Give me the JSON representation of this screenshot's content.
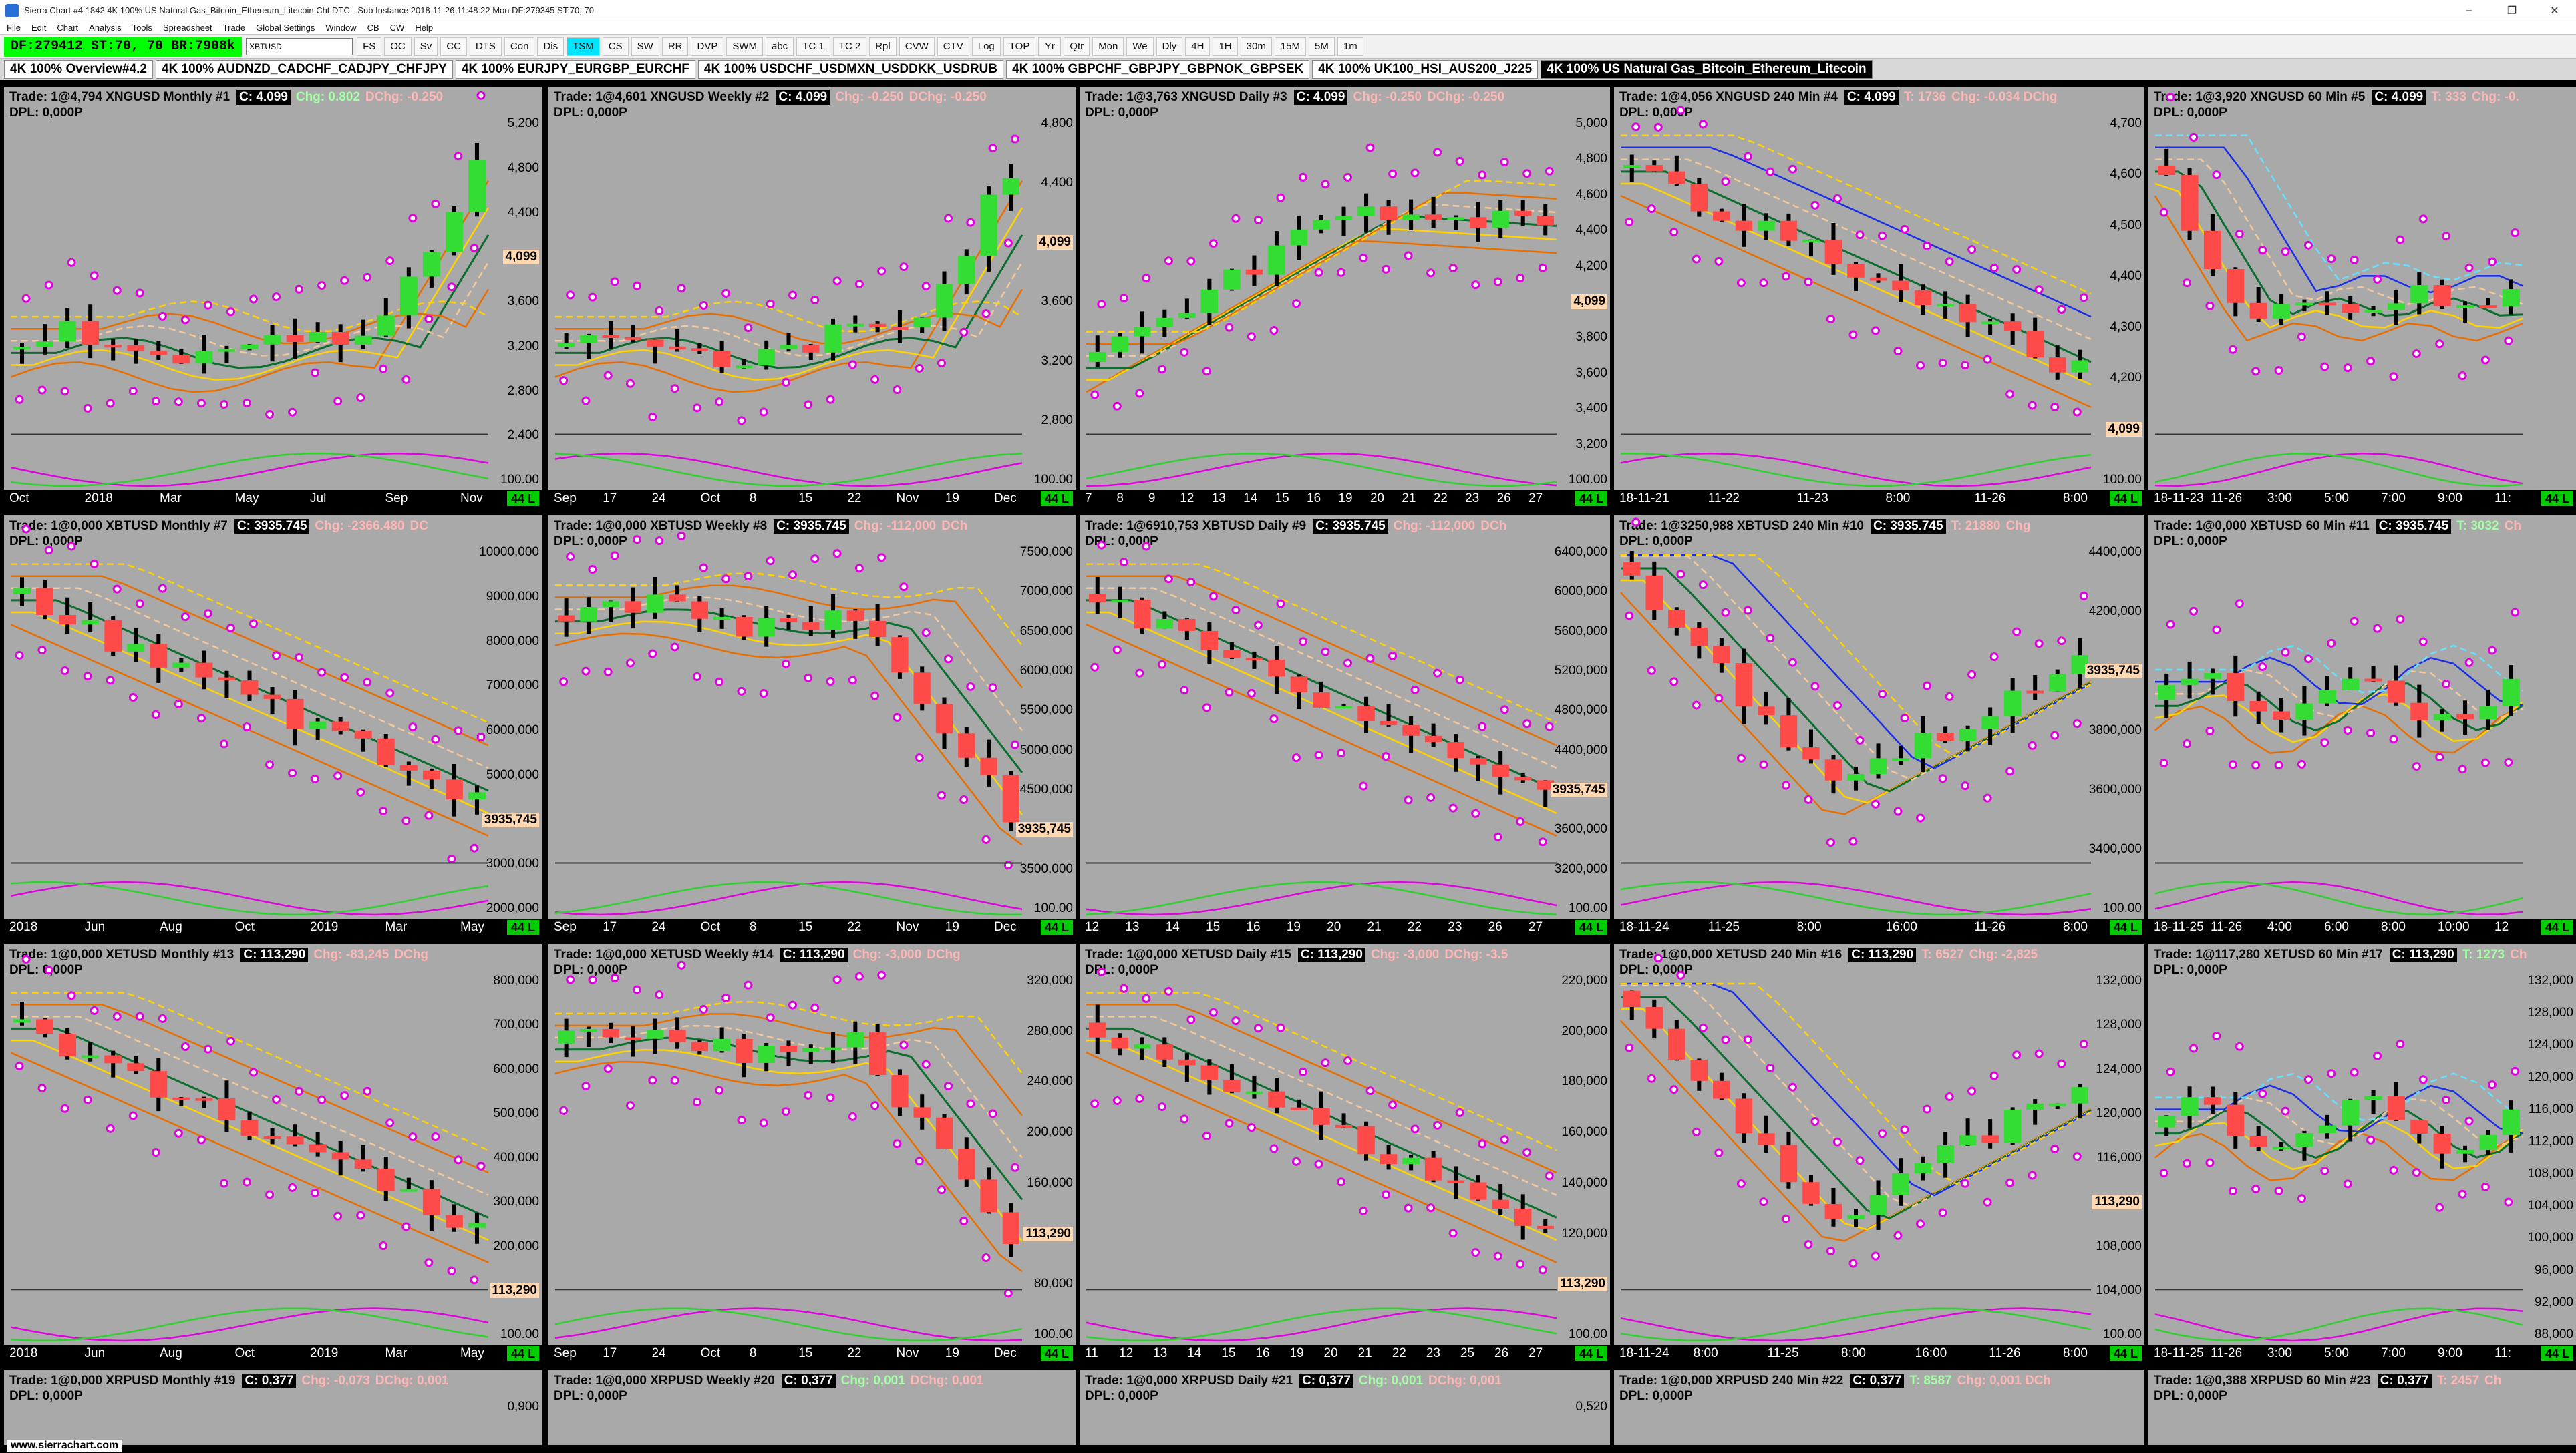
{
  "window": {
    "title": "Sierra Chart #4 1842 4K 100% US Natural Gas_Bitcoin_Ethereum_Litecoin.Cht  DTC - Sub Instance 2018-11-26  11:48:22 Mon  DF:279345  ST:70, 70"
  },
  "menu": [
    "File",
    "Edit",
    "Chart",
    "Analysis",
    "Tools",
    "Spreadsheet",
    "Trade",
    "Global Settings",
    "Window",
    "CB",
    "CW",
    "Help"
  ],
  "toolbar": {
    "status": "DF:279412  ST:70, 70  BR:7908k",
    "symbol": "XBTUSD",
    "buttons": [
      "FS",
      "OC",
      "Sv",
      "CC",
      "DTS",
      "Con",
      "Dis",
      "TSM",
      "CS",
      "SW",
      "RR",
      "DVP",
      "SWM",
      "abc",
      "TC 1",
      "TC 2",
      "Rpl",
      "CVW",
      "CTV",
      "Log",
      "TOP",
      "Yr",
      "Qtr",
      "Mon",
      "We",
      "Dly",
      "4H",
      "1H",
      "30m",
      "15M",
      "5M",
      "1m"
    ],
    "active_button": "TSM"
  },
  "tabs": [
    "4K 100% Overview#4.2",
    "4K 100% AUDNZD_CADCHF_CADJPY_CHFJPY",
    "4K 100% EURJPY_EURGBP_EURCHF",
    "4K 100% USDCHF_USDMXN_USDDKK_USDRUB",
    "4K 100% GBPCHF_GBPJPY_GBPNOK_GBPSEK",
    "4K 100% UK100_HSI_AUS200_J225",
    "4K 100% US Natural Gas_Bitcoin_Ethereum_Litecoin"
  ],
  "active_tab": 6,
  "colors": {
    "bg": "#a9a9a9",
    "up": "#33dd33",
    "down": "#ff4a4a",
    "wick": "#000000",
    "ma_orange": "#e86e00",
    "ma_yellow": "#ffd200",
    "ma_green": "#0b6e2e",
    "ma_blue": "#1a2ee8",
    "ma_cyan": "#66e0ff",
    "ma_tan": "#f5c89a",
    "dot_mag": "#e000e0"
  },
  "footer": "www.sierrachart.com",
  "panels": [
    {
      "id": 1,
      "label": "Trade: 1@4,794  XNGUSD  Monthly  #1",
      "close": "C: 4.099",
      "chg": "Chg: 0.802",
      "dchg": "DChg: -0.250",
      "chg_up": true,
      "y_ticks": [
        "5,200",
        "4,800",
        "4,400",
        "4,099",
        "3,600",
        "3,200",
        "2,800",
        "2,400",
        "100.00"
      ],
      "price": "4,099",
      "x_ticks": [
        "Oct",
        "2018",
        "Mar",
        "May",
        "Jul",
        "Sep",
        "Nov"
      ],
      "trend": "up-late",
      "seed": 3
    },
    {
      "id": 2,
      "label": "Trade: 1@4,601  XNGUSD  Weekly  #2",
      "close": "C: 4.099",
      "chg": "Chg: -0.250",
      "dchg": "DChg: -0.250",
      "chg_up": false,
      "y_ticks": [
        "4,800",
        "4,400",
        "4,099",
        "3,600",
        "3,200",
        "2,800",
        "100.00"
      ],
      "price": "4,099",
      "x_ticks": [
        "Sep",
        "17",
        "24",
        "Oct",
        "8",
        "15",
        "22",
        "Nov",
        "19",
        "Dec"
      ],
      "trend": "up-late",
      "seed": 7
    },
    {
      "id": 3,
      "label": "Trade: 1@3,763  XNGUSD  Daily  #3",
      "close": "C: 4.099",
      "chg": "Chg: -0.250",
      "dchg": "DChg: -0.250",
      "chg_up": false,
      "y_ticks": [
        "5,000",
        "4,800",
        "4,600",
        "4,400",
        "4,200",
        "4,099",
        "3,800",
        "3,600",
        "3,400",
        "3,200",
        "100.00"
      ],
      "price": "4,099",
      "x_ticks": [
        "7",
        "8",
        "9",
        "12",
        "13",
        "14",
        "15",
        "16",
        "19",
        "20",
        "21",
        "22",
        "23",
        "26",
        "27"
      ],
      "trend": "up-mid",
      "seed": 11
    },
    {
      "id": 4,
      "label": "Trade: 1@4,056  XNGUSD  240 Min  #4",
      "close": "C: 4.099",
      "chg": "T: 1736",
      "dchg": "Chg: -0.034  DChg",
      "chg_up": false,
      "y_ticks": [
        "4,700",
        "4,600",
        "4,500",
        "4,400",
        "4,300",
        "4,200",
        "4,099",
        "100.00"
      ],
      "price": "4,099",
      "x_ticks": [
        "18-11-21",
        "11-22",
        "11-23",
        "8:00",
        "11-26",
        "8:00"
      ],
      "trend": "down",
      "seed": 13
    },
    {
      "id": 5,
      "label": "Trade: 1@3,920  XNGUSD  60 Min  #5",
      "close": "C: 4.099",
      "chg": "T: 333",
      "dchg": "Chg: -0.",
      "chg_up": false,
      "y_ticks": [],
      "price": "",
      "x_ticks": [
        "18-11-23",
        "11-26",
        "3:00",
        "5:00",
        "7:00",
        "9:00",
        "11:"
      ],
      "trend": "down-flat",
      "seed": 17
    },
    {
      "id": 7,
      "label": "Trade: 1@0,000  XBTUSD  Monthly  #7",
      "close": "C: 3935.745",
      "chg": "Chg: -2366.480",
      "dchg": "DC",
      "chg_up": false,
      "y_ticks": [
        "10000,000",
        "9000,000",
        "8000,000",
        "7000,000",
        "6000,000",
        "5000,000",
        "3935,745",
        "3000,000",
        "2000,000"
      ],
      "price": "3935,745",
      "x_ticks": [
        "2018",
        "Jun",
        "Aug",
        "Oct",
        "2019",
        "Mar",
        "May"
      ],
      "trend": "down",
      "seed": 19
    },
    {
      "id": 8,
      "label": "Trade: 1@0,000  XBTUSD  Weekly  #8",
      "close": "C: 3935.745",
      "chg": "Chg: -112,000",
      "dchg": "DCh",
      "chg_up": false,
      "y_ticks": [
        "7500,000",
        "7000,000",
        "6500,000",
        "6000,000",
        "5500,000",
        "5000,000",
        "4500,000",
        "3935,745",
        "3500,000",
        "100.00"
      ],
      "price": "3935,745",
      "x_ticks": [
        "Sep",
        "17",
        "24",
        "Oct",
        "8",
        "15",
        "22",
        "Nov",
        "19",
        "Dec"
      ],
      "trend": "down-late",
      "seed": 23
    },
    {
      "id": 9,
      "label": "Trade: 1@6910,753  XBTUSD  Daily  #9",
      "close": "C: 3935.745",
      "chg": "Chg: -112,000",
      "dchg": "DCh",
      "chg_up": false,
      "y_ticks": [
        "6400,000",
        "6000,000",
        "5600,000",
        "5200,000",
        "4800,000",
        "4400,000",
        "3935,745",
        "3600,000",
        "3200,000",
        "100.00"
      ],
      "price": "3935,745",
      "x_ticks": [
        "12",
        "13",
        "14",
        "15",
        "16",
        "19",
        "20",
        "21",
        "22",
        "23",
        "26",
        "27"
      ],
      "trend": "down",
      "seed": 29
    },
    {
      "id": 10,
      "label": "Trade: 1@3250,988  XBTUSD  240 Min  #10",
      "close": "C: 3935.745",
      "chg": "T: 21880",
      "dchg": "Chg",
      "chg_up": false,
      "y_ticks": [
        "4400,000",
        "4200,000",
        "3935,745",
        "3800,000",
        "3600,000",
        "3400,000",
        "100.00"
      ],
      "price": "3935,745",
      "x_ticks": [
        "18-11-24",
        "11-25",
        "8:00",
        "16:00",
        "11-26",
        "8:00"
      ],
      "trend": "v",
      "seed": 31
    },
    {
      "id": 11,
      "label": "Trade: 1@0,000  XBTUSD  60 Min  #11",
      "close": "C: 3935.745",
      "chg": "T: 3032",
      "dchg": "Ch",
      "chg_up": true,
      "y_ticks": [],
      "price": "",
      "x_ticks": [
        "18-11-25",
        "11-26",
        "4:00",
        "6:00",
        "8:00",
        "10:00",
        "12"
      ],
      "trend": "flat",
      "seed": 37
    },
    {
      "id": 13,
      "label": "Trade: 1@0,000  XETUSD  Monthly  #13",
      "close": "C: 113,290",
      "chg": "Chg: -83,245",
      "dchg": "DChg",
      "chg_up": false,
      "y_ticks": [
        "800,000",
        "700,000",
        "600,000",
        "500,000",
        "400,000",
        "300,000",
        "200,000",
        "113,290",
        "100.00"
      ],
      "price": "113,290",
      "x_ticks": [
        "2018",
        "Jun",
        "Aug",
        "Oct",
        "2019",
        "Mar",
        "May"
      ],
      "trend": "down",
      "seed": 41
    },
    {
      "id": 14,
      "label": "Trade: 1@0,000  XETUSD  Weekly  #14",
      "close": "C: 113,290",
      "chg": "Chg: -3,000",
      "dchg": "DChg",
      "chg_up": false,
      "y_ticks": [
        "320,000",
        "280,000",
        "240,000",
        "200,000",
        "160,000",
        "113,290",
        "80,000",
        "100.00"
      ],
      "price": "113,290",
      "x_ticks": [
        "Sep",
        "17",
        "24",
        "Oct",
        "8",
        "15",
        "22",
        "Nov",
        "19",
        "Dec"
      ],
      "trend": "down-late",
      "seed": 43
    },
    {
      "id": 15,
      "label": "Trade: 1@0,000  XETUSD  Daily  #15",
      "close": "C: 113,290",
      "chg": "Chg: -3,000",
      "dchg": "DChg: -3.5",
      "chg_up": false,
      "y_ticks": [
        "220,000",
        "200,000",
        "180,000",
        "160,000",
        "140,000",
        "120,000",
        "113,290",
        "100.00"
      ],
      "price": "113,290",
      "x_ticks": [
        "11",
        "12",
        "13",
        "14",
        "15",
        "16",
        "19",
        "20",
        "21",
        "22",
        "23",
        "25",
        "26",
        "27"
      ],
      "trend": "down",
      "seed": 47
    },
    {
      "id": 16,
      "label": "Trade: 1@0,000  XETUSD  240 Min  #16",
      "close": "C: 113,290",
      "chg": "T: 6527",
      "dchg": "Chg: -2,825",
      "chg_up": false,
      "y_ticks": [
        "132,000",
        "128,000",
        "124,000",
        "120,000",
        "116,000",
        "113,290",
        "108,000",
        "104,000",
        "100.00"
      ],
      "price": "113,290",
      "x_ticks": [
        "18-11-24",
        "8:00",
        "11-25",
        "8:00",
        "16:00",
        "11-26",
        "8:00"
      ],
      "trend": "v",
      "seed": 53
    },
    {
      "id": 17,
      "label": "Trade: 1@117,280  XETUSD  60 Min  #17",
      "close": "C: 113,290",
      "chg": "T: 1273",
      "dchg": "Ch",
      "chg_up": true,
      "y_ticks": [
        "132,000",
        "128,000",
        "124,000",
        "120,000",
        "116,000",
        "112,000",
        "108,000",
        "104,000",
        "100,000",
        "96,000",
        "92,000",
        "88,000"
      ],
      "price": "",
      "x_ticks": [
        "18-11-25",
        "11-26",
        "3:00",
        "5:00",
        "7:00",
        "9:00",
        "11:"
      ],
      "trend": "flat",
      "seed": 59
    },
    {
      "id": 19,
      "label": "Trade: 1@0,000  XRPUSD  Monthly  #19",
      "close": "C: 0,377",
      "chg": "Chg: -0,073",
      "dchg": "DChg: 0,001",
      "chg_up": false,
      "y_ticks": [
        "0,900"
      ],
      "price": "",
      "x_ticks": [],
      "trend": "none",
      "seed": 61
    },
    {
      "id": 20,
      "label": "Trade: 1@0,000  XRPUSD  Weekly  #20",
      "close": "C: 0,377",
      "chg": "Chg: 0,001",
      "dchg": "DChg: 0,001",
      "chg_up": true,
      "y_ticks": [],
      "price": "",
      "x_ticks": [],
      "trend": "none",
      "seed": 67
    },
    {
      "id": 21,
      "label": "Trade: 1@0,000  XRPUSD  Daily  #21",
      "close": "C: 0,377",
      "chg": "Chg: 0,001",
      "dchg": "DChg: 0,001",
      "chg_up": true,
      "y_ticks": [
        "0,520"
      ],
      "price": "",
      "x_ticks": [],
      "trend": "none",
      "seed": 71
    },
    {
      "id": 22,
      "label": "Trade: 1@0,000  XRPUSD  240 Min  #22",
      "close": "C: 0,377",
      "chg": "T: 8587",
      "dchg": "Chg: 0,001  DCh",
      "chg_up": true,
      "y_ticks": [],
      "price": "",
      "x_ticks": [],
      "trend": "none",
      "seed": 73
    },
    {
      "id": 23,
      "label": "Trade: 1@0,388  XRPUSD  60 Min  #23",
      "close": "C: 0,377",
      "chg": "T: 2457",
      "dchg": "Ch",
      "chg_up": false,
      "y_ticks": [],
      "price": "",
      "x_ticks": [],
      "trend": "none",
      "seed": 79
    }
  ]
}
